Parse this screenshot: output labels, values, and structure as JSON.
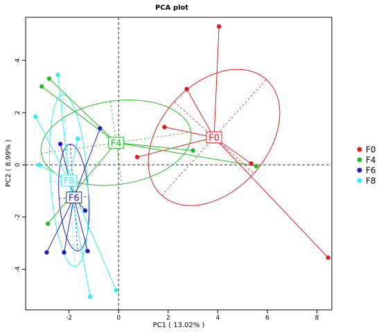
{
  "chart_data": {
    "type": "scatter",
    "title": "PCA plot",
    "xlabel": "PC1 ( 13.02% )",
    "ylabel": "PC2 ( 8.99% )",
    "xlim": [
      -3.75,
      8.6
    ],
    "ylim": [
      -5.55,
      5.65
    ],
    "x_ticks": [
      -2,
      0,
      2,
      4,
      6,
      8
    ],
    "y_ticks": [
      -4,
      -2,
      0,
      2,
      4
    ],
    "x_tick_labels": [
      "-2",
      "0",
      "2",
      "4",
      "6",
      "8"
    ],
    "y_tick_labels": [
      "-4",
      "-2",
      "0",
      "2",
      "4"
    ],
    "reference_lines": {
      "x": 0,
      "y": 0,
      "style": "dashed"
    },
    "legend": {
      "placement": "right"
    },
    "series": [
      {
        "name": "F0",
        "color": "#e31a1c",
        "centroid": [
          3.85,
          1.05
        ],
        "ellipse": {
          "rx": 3.15,
          "ry": 2.05,
          "angle": -48
        },
        "points": [
          [
            4.05,
            5.3
          ],
          [
            2.75,
            2.9
          ],
          [
            1.85,
            1.45
          ],
          [
            0.75,
            0.3
          ],
          [
            5.35,
            0.05
          ],
          [
            8.45,
            -3.55
          ]
        ]
      },
      {
        "name": "F4",
        "color": "#22bb22",
        "centroid": [
          -0.1,
          0.85
        ],
        "ellipse": {
          "rx": 3.05,
          "ry": 1.6,
          "angle": -8
        },
        "points": [
          [
            -2.8,
            3.3
          ],
          [
            -3.1,
            3.0
          ],
          [
            3.0,
            0.55
          ],
          [
            5.55,
            -0.05
          ],
          [
            -2.85,
            -2.25
          ]
        ]
      },
      {
        "name": "F6",
        "color": "#1f1fbb",
        "centroid": [
          -1.8,
          -1.25
        ],
        "ellipse": {
          "rx": 0.6,
          "ry": 2.05,
          "angle": -4
        },
        "points": [
          [
            -0.75,
            1.4
          ],
          [
            -2.35,
            0.8
          ],
          [
            -1.35,
            -1.75
          ],
          [
            -2.2,
            -3.35
          ],
          [
            -1.25,
            -3.3
          ],
          [
            -2.9,
            -3.35
          ]
        ]
      },
      {
        "name": "F8",
        "color": "#2ff0f0",
        "centroid": [
          -2.0,
          -0.6
        ],
        "ellipse": {
          "rx": 0.75,
          "ry": 3.3,
          "angle": -4
        },
        "points": [
          [
            -2.45,
            3.45
          ],
          [
            -3.35,
            1.85
          ],
          [
            -1.65,
            1.0
          ],
          [
            -3.2,
            0.0
          ],
          [
            -0.1,
            -4.8
          ],
          [
            -1.15,
            -5.05
          ]
        ]
      }
    ]
  }
}
